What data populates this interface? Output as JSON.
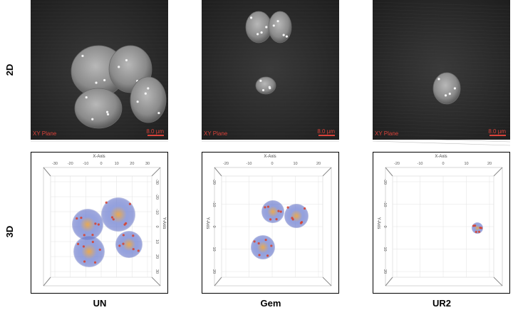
{
  "row_labels": [
    "2D",
    "3D"
  ],
  "columns": [
    {
      "label": "UN",
      "image_2d": {
        "plane": "XY Plane",
        "scale": "8.0 µm"
      },
      "image_3d": {
        "x_axis": "X-Axis",
        "y_axis": "Y-Axis",
        "x_ticks": [
          "-30",
          "-20",
          "-10",
          "0",
          "10",
          "20",
          "30"
        ],
        "y_ticks": [
          "-30",
          "-20",
          "-10",
          "0",
          "10",
          "20",
          "30"
        ]
      }
    },
    {
      "label": "Gem",
      "image_2d": {
        "plane": "XY Plane",
        "scale": "8.0 µm"
      },
      "image_3d": {
        "x_axis": "X-Axis",
        "y_axis": "Y-Axis",
        "x_ticks": [
          "-20",
          "-10",
          "0",
          "10",
          "20"
        ],
        "y_ticks": [
          "-20",
          "-10",
          "0",
          "10",
          "20"
        ]
      }
    },
    {
      "label": "UR2",
      "image_2d": {
        "plane": "XY Plane",
        "scale": "8.0 µm"
      },
      "image_3d": {
        "x_axis": "X-Axis",
        "y_axis": "Y-Axis",
        "x_ticks": [
          "-20",
          "-10",
          "0",
          "10",
          "20"
        ],
        "y_ticks": [
          "-20",
          "-10",
          "0",
          "10",
          "20"
        ]
      }
    }
  ]
}
